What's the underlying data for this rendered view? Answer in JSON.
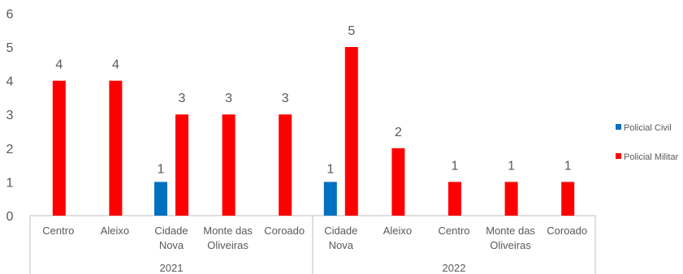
{
  "chart_data": {
    "type": "bar",
    "title": "",
    "xlabel": "",
    "ylabel": "",
    "ylim": [
      0,
      6
    ],
    "yticks": [
      "0",
      "1",
      "2",
      "3",
      "4",
      "5",
      "6"
    ],
    "grid": false,
    "legend_position": "right",
    "groups": [
      {
        "label": "2021",
        "categories": [
          [
            "Centro"
          ],
          [
            "Aleixo"
          ],
          [
            "Cidade",
            "Nova"
          ],
          [
            "Monte das",
            "Oliveiras"
          ],
          [
            "Coroado"
          ]
        ]
      },
      {
        "label": "2022",
        "categories": [
          [
            "Cidade",
            "Nova"
          ],
          [
            "Aleixo"
          ],
          [
            "Centro"
          ],
          [
            "Monte das",
            "Oliveiras"
          ],
          [
            "Coroado"
          ]
        ]
      }
    ],
    "series": [
      {
        "name": "Policial Civil",
        "color": "#0070C0",
        "values": [
          null,
          null,
          1,
          null,
          null,
          1,
          null,
          null,
          null,
          null
        ]
      },
      {
        "name": "Policial Militar",
        "color": "#FF0000",
        "values": [
          4,
          4,
          3,
          3,
          3,
          5,
          2,
          1,
          1,
          1
        ]
      }
    ]
  }
}
